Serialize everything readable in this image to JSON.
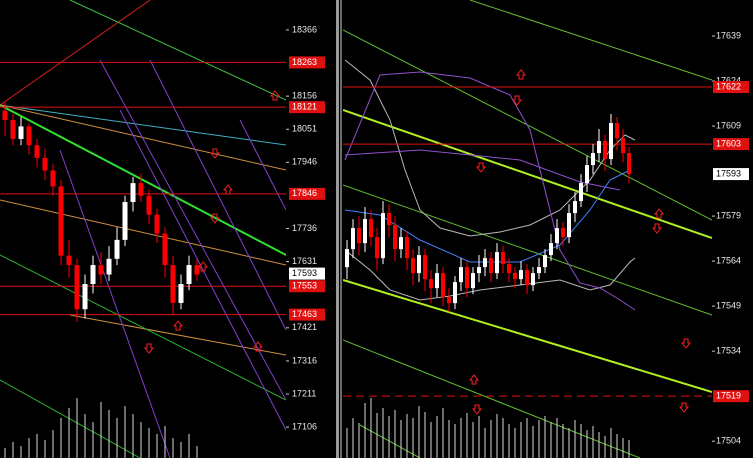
{
  "chart_data": [
    {
      "type": "candlestick",
      "up_color": "#ffffff",
      "down_color": "#ff0000",
      "level_color": "#e01010",
      "ylim": [
        17008,
        18461
      ],
      "yticks": [
        18366,
        18156,
        18051,
        17946,
        17736,
        17631,
        17421,
        17316,
        17211,
        17106
      ],
      "levels": [
        18263,
        18121,
        17846,
        17553,
        17463
      ],
      "last": 17593,
      "ohlc": [
        [
          18110,
          18140,
          18030,
          18080
        ],
        [
          18080,
          18100,
          18000,
          18020
        ],
        [
          18020,
          18090,
          18000,
          18060
        ],
        [
          18060,
          18070,
          17970,
          18000
        ],
        [
          18000,
          18020,
          17930,
          17960
        ],
        [
          17960,
          17990,
          17890,
          17920
        ],
        [
          17920,
          17940,
          17840,
          17870
        ],
        [
          17870,
          17890,
          17620,
          17650
        ],
        [
          17650,
          17700,
          17580,
          17620
        ],
        [
          17620,
          17640,
          17440,
          17480
        ],
        [
          17480,
          17590,
          17450,
          17560
        ],
        [
          17560,
          17650,
          17530,
          17620
        ],
        [
          17620,
          17660,
          17560,
          17590
        ],
        [
          17590,
          17680,
          17570,
          17640
        ],
        [
          17640,
          17740,
          17620,
          17700
        ],
        [
          17700,
          17840,
          17680,
          17820
        ],
        [
          17820,
          17900,
          17790,
          17880
        ],
        [
          17880,
          17910,
          17820,
          17840
        ],
        [
          17840,
          17860,
          17750,
          17780
        ],
        [
          17780,
          17800,
          17690,
          17720
        ],
        [
          17720,
          17740,
          17580,
          17620
        ],
        [
          17620,
          17650,
          17460,
          17500
        ],
        [
          17500,
          17590,
          17480,
          17560
        ],
        [
          17560,
          17650,
          17540,
          17620
        ],
        [
          17620,
          17640,
          17570,
          17590
        ]
      ],
      "volume": [
        5,
        8,
        6,
        10,
        12,
        9,
        14,
        20,
        25,
        30,
        22,
        18,
        28,
        24,
        20,
        26,
        22,
        18,
        15,
        12,
        16,
        10,
        8,
        12,
        6
      ]
    },
    {
      "type": "candlestick",
      "up_color": "#ffffff",
      "down_color": "#ff0000",
      "level_color": "#e01010",
      "ylim": [
        17498.4,
        17651
      ],
      "yticks": [
        17639,
        17624,
        17609,
        17579,
        17564,
        17549,
        17534,
        17504
      ],
      "levels": [
        17622,
        17603
      ],
      "dashed_levels": [
        17519
      ],
      "last": 17593,
      "ohlc": [
        [
          17562,
          17571,
          17558,
          17568
        ],
        [
          17568,
          17578,
          17565,
          17575
        ],
        [
          17575,
          17579,
          17566,
          17570
        ],
        [
          17570,
          17582,
          17567,
          17578
        ],
        [
          17578,
          17581,
          17569,
          17572
        ],
        [
          17572,
          17575,
          17561,
          17565
        ],
        [
          17565,
          17584,
          17563,
          17580
        ],
        [
          17580,
          17583,
          17572,
          17576
        ],
        [
          17576,
          17579,
          17564,
          17568
        ],
        [
          17568,
          17575,
          17565,
          17572
        ],
        [
          17572,
          17574,
          17561,
          17565
        ],
        [
          17565,
          17568,
          17556,
          17560
        ],
        [
          17560,
          17569,
          17557,
          17566
        ],
        [
          17566,
          17568,
          17554,
          17558
        ],
        [
          17558,
          17561,
          17550,
          17555
        ],
        [
          17555,
          17563,
          17552,
          17560
        ],
        [
          17560,
          17562,
          17549,
          17552
        ],
        [
          17552,
          17555,
          17547,
          17550
        ],
        [
          17550,
          17559,
          17548,
          17557
        ],
        [
          17557,
          17565,
          17554,
          17562
        ],
        [
          17562,
          17564,
          17552,
          17555
        ],
        [
          17555,
          17562,
          17553,
          17560
        ],
        [
          17560,
          17566,
          17557,
          17562
        ],
        [
          17562,
          17568,
          17559,
          17565
        ],
        [
          17565,
          17567,
          17557,
          17560
        ],
        [
          17560,
          17570,
          17558,
          17567
        ],
        [
          17567,
          17569,
          17560,
          17563
        ],
        [
          17563,
          17565,
          17557,
          17560
        ],
        [
          17560,
          17562,
          17555,
          17558
        ],
        [
          17558,
          17564,
          17556,
          17561
        ],
        [
          17561,
          17563,
          17553,
          17556
        ],
        [
          17556,
          17562,
          17554,
          17560
        ],
        [
          17560,
          17565,
          17558,
          17562
        ],
        [
          17562,
          17568,
          17560,
          17566
        ],
        [
          17566,
          17573,
          17564,
          17570
        ],
        [
          17570,
          17578,
          17568,
          17575
        ],
        [
          17575,
          17577,
          17569,
          17572
        ],
        [
          17572,
          17583,
          17570,
          17580
        ],
        [
          17580,
          17587,
          17577,
          17584
        ],
        [
          17584,
          17593,
          17582,
          17590
        ],
        [
          17590,
          17599,
          17587,
          17596
        ],
        [
          17596,
          17603,
          17593,
          17600
        ],
        [
          17600,
          17608,
          17597,
          17604
        ],
        [
          17604,
          17606,
          17594,
          17598
        ],
        [
          17598,
          17613,
          17596,
          17610
        ],
        [
          17610,
          17612,
          17601,
          17605
        ],
        [
          17605,
          17608,
          17597,
          17600
        ],
        [
          17600,
          17602,
          17590,
          17593
        ]
      ],
      "volume": [
        30,
        40,
        35,
        55,
        60,
        45,
        50,
        42,
        48,
        38,
        44,
        40,
        52,
        46,
        36,
        42,
        50,
        38,
        34,
        40,
        45,
        36,
        42,
        30,
        38,
        44,
        40,
        34,
        30,
        36,
        40,
        32,
        38,
        42,
        36,
        40,
        34,
        30,
        38,
        34,
        28,
        32,
        26,
        22,
        30,
        24,
        20,
        18
      ]
    }
  ]
}
